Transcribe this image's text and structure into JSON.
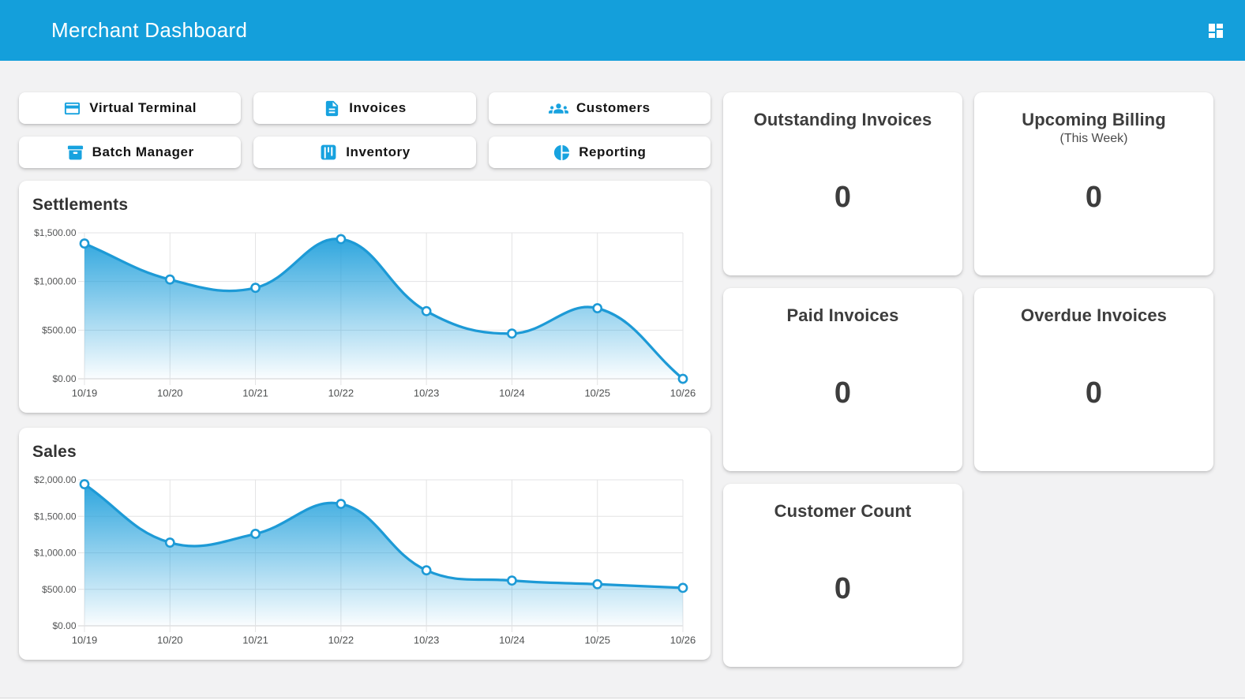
{
  "header": {
    "title": "Merchant Dashboard"
  },
  "colors": {
    "header_bg": "#149fdb",
    "icon_blue": "#17a2df",
    "chart_line": "#1d9ad6",
    "chart_fill_top": "#1c9edb",
    "page_bg": "#f2f2f3",
    "card_bg": "#ffffff"
  },
  "nav_buttons": [
    {
      "label": "Virtual Terminal",
      "icon": "credit-card-icon"
    },
    {
      "label": "Invoices",
      "icon": "invoice-document-icon"
    },
    {
      "label": "Customers",
      "icon": "customers-people-icon"
    },
    {
      "label": "Batch Manager",
      "icon": "archive-box-icon"
    },
    {
      "label": "Inventory",
      "icon": "kanban-columns-icon"
    },
    {
      "label": "Reporting",
      "icon": "pie-chart-icon"
    }
  ],
  "charts": [
    {
      "id": "settlements",
      "chart_data": {
        "type": "area",
        "title": "Settlements",
        "categories": [
          "10/19",
          "10/20",
          "10/21",
          "10/22",
          "10/23",
          "10/24",
          "10/25",
          "10/26"
        ],
        "values": [
          1390,
          1020,
          935,
          1435,
          695,
          465,
          725,
          0
        ],
        "y_tick_labels": [
          "$0.00",
          "$500.00",
          "$1,000.00",
          "$1,500.00"
        ],
        "ylim": [
          0,
          1500
        ],
        "y_step": 500,
        "xlabel": "",
        "ylabel": "",
        "grid": true,
        "legend": false
      }
    },
    {
      "id": "sales",
      "chart_data": {
        "type": "area",
        "title": "Sales",
        "categories": [
          "10/19",
          "10/20",
          "10/21",
          "10/22",
          "10/23",
          "10/24",
          "10/25",
          "10/26"
        ],
        "values": [
          1940,
          1140,
          1260,
          1670,
          760,
          620,
          570,
          520
        ],
        "y_tick_labels": [
          "$0.00",
          "$500.00",
          "$1,000.00",
          "$1,500.00",
          "$2,000.00"
        ],
        "ylim": [
          0,
          2000
        ],
        "y_step": 500,
        "xlabel": "",
        "ylabel": "",
        "grid": true,
        "legend": false
      }
    }
  ],
  "stat_cards": [
    {
      "title": "Outstanding Invoices",
      "subtitle": "",
      "value": "0"
    },
    {
      "title": "Upcoming Billing",
      "subtitle": "(This Week)",
      "value": "0"
    },
    {
      "title": "Paid Invoices",
      "subtitle": "",
      "value": "0"
    },
    {
      "title": "Overdue Invoices",
      "subtitle": "",
      "value": "0"
    },
    {
      "title": "Customer Count",
      "subtitle": "",
      "value": "0"
    }
  ]
}
